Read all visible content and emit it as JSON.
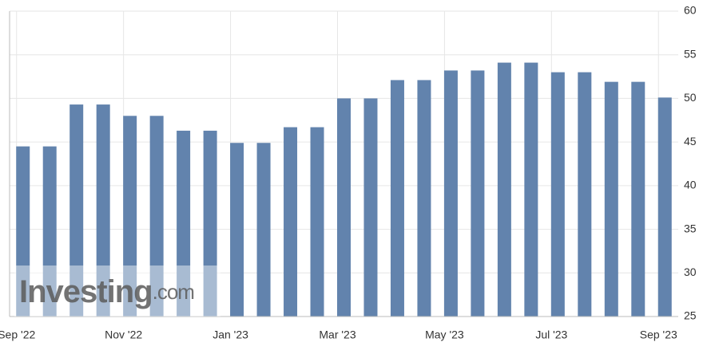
{
  "chart_data": {
    "type": "bar",
    "categories": [
      "Sep '22",
      null,
      null,
      null,
      "Nov '22",
      null,
      null,
      null,
      "Jan '23",
      null,
      null,
      null,
      "Mar '23",
      null,
      null,
      null,
      "May '23",
      null,
      null,
      null,
      "Jul '23",
      null,
      null,
      null,
      "Sep '23"
    ],
    "values": [
      44.5,
      44.5,
      49.3,
      49.3,
      48.0,
      48.0,
      46.3,
      46.3,
      44.9,
      44.9,
      46.7,
      46.7,
      50.0,
      50.0,
      52.1,
      52.1,
      53.2,
      53.2,
      54.1,
      54.1,
      53.0,
      53.0,
      51.9,
      51.9,
      50.1
    ],
    "color": "#6283ad",
    "ylim": [
      25,
      60
    ],
    "yticks": [
      25,
      30,
      35,
      40,
      45,
      50,
      55,
      60
    ],
    "grid": true,
    "watermark": "Investing",
    "watermark_suffix": ".com"
  }
}
